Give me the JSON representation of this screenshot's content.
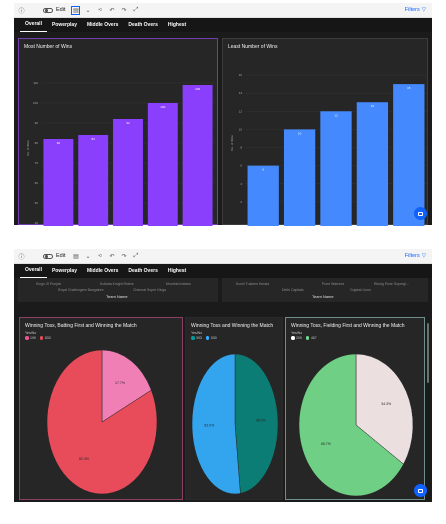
{
  "toolbar": {
    "edit_label": "Edit",
    "filters_label": "Filters"
  },
  "tabs": [
    "Overall",
    "Powerplay",
    "Middle Overs",
    "Death Overs",
    "Highest"
  ],
  "top_panel": {
    "most_wins": {
      "title": "Most Number of Wins",
      "ylabel": "No. of Wins",
      "chart_data": {
        "type": "bar",
        "values": [
          82,
          84,
          92,
          100,
          109
        ],
        "value_labels": [
          "82",
          "84",
          "92",
          "100",
          "109"
        ],
        "yticks": [
          "40",
          "50",
          "60",
          "70",
          "80",
          "90",
          "100",
          "110"
        ],
        "ylim": [
          40,
          115
        ],
        "color": "#8a3ffc"
      }
    },
    "least_wins": {
      "title": "Least Number of Wins",
      "ylabel": "No. of Wins",
      "chart_data": {
        "type": "bar",
        "values": [
          6,
          10,
          12,
          13,
          15
        ],
        "value_labels": [
          "6",
          "10",
          "12",
          "13",
          "15"
        ],
        "yticks": [
          "2",
          "4",
          "6",
          "8",
          "10",
          "12",
          "14",
          "16"
        ],
        "ylim": [
          0,
          17
        ],
        "color": "#4589ff"
      }
    }
  },
  "bottom_panel": {
    "teams_left": {
      "row1": [
        "Kings XI Punjab",
        "Kolkata Knight Riders",
        "Mumbai Indians"
      ],
      "row2": [
        "Royal Challengers Bangalore",
        "Chennai Super Kings"
      ],
      "axis_label": "Team Name"
    },
    "teams_right": {
      "row1": [
        "Kochi Tuskers Kerala",
        "Pune Warriors",
        "Rising Pune Supergi..."
      ],
      "row2": [
        "Delhi Capitals",
        "Gujarat Lions"
      ],
      "axis_label": "Team Name"
    },
    "pie_batting": {
      "title": "Winning Toss, Batting First and Winning the Match",
      "legend_title": "Yes/No",
      "legend": [
        {
          "label": "190",
          "color": "#ee5396"
        },
        {
          "label": "833",
          "color": "#e84c5a"
        }
      ],
      "chart_data": {
        "type": "pie",
        "labels": [
          "190",
          "833"
        ],
        "values": [
          17.7,
          82.3
        ],
        "value_labels": [
          "17.7%",
          "82.3%"
        ],
        "colors": [
          "#f07fb6",
          "#e84c5a"
        ]
      }
    },
    "pie_toss": {
      "title": "Winning Toss and Winning the Match",
      "legend_title": "Yes/No",
      "legend": [
        {
          "label": "393",
          "color": "#009d9a"
        },
        {
          "label": "530",
          "color": "#33b1ff"
        }
      ],
      "chart_data": {
        "type": "pie",
        "labels": [
          "393",
          "530"
        ],
        "values": [
          48.0,
          52.0
        ],
        "value_labels": [
          "48.0%",
          "52.0%"
        ],
        "colors": [
          "#0b7d74",
          "#33a5ee"
        ]
      }
    },
    "pie_fielding": {
      "title": "Winning Toss, Fielding First and Winning the Match",
      "legend_title": "Yes/No",
      "legend": [
        {
          "label": "209",
          "color": "#ffffff"
        },
        {
          "label": "467",
          "color": "#6fdc8c"
        }
      ],
      "chart_data": {
        "type": "pie",
        "labels": [
          "209",
          "467"
        ],
        "values": [
          34.3,
          65.7
        ],
        "value_labels": [
          "34.3%",
          "65.7%"
        ],
        "colors": [
          "#ecdfdf",
          "#6fcf85"
        ]
      }
    }
  }
}
